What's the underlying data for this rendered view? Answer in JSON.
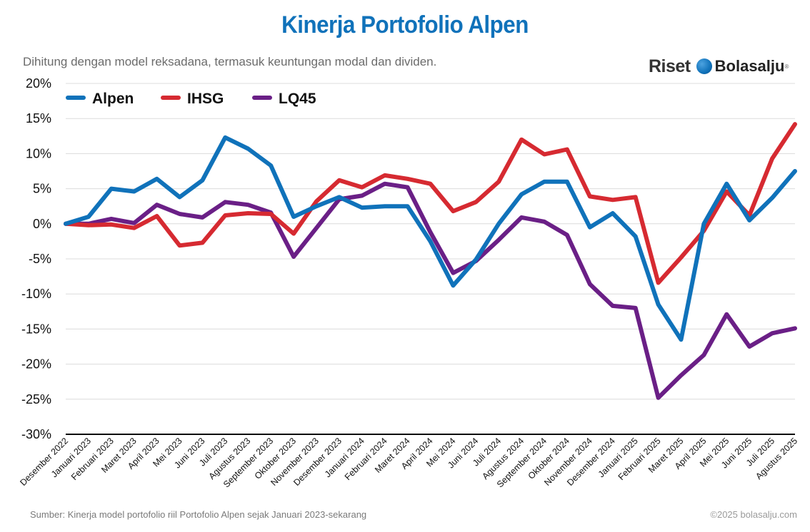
{
  "header": {
    "title": "Kinerja Portofolio Alpen",
    "subtitle": "Dihitung dengan model reksadana, termasuk keuntungan modal dan dividen."
  },
  "brand": {
    "riset": "Riset",
    "name": "Bolasalju",
    "reg": "®",
    "ball_icon": "snowball-icon"
  },
  "footer": {
    "source": "Sumber: Kinerja model portofolio riil Portofolio Alpen sejak Januari 2023-sekarang",
    "copyright": "©2025 bolasalju.com"
  },
  "colors": {
    "Alpen": "#1072ba",
    "IHSG": "#d62a31",
    "LQ45": "#6a1f86",
    "title": "#1072ba"
  },
  "chart_data": {
    "type": "line",
    "title": "Kinerja Portofolio Alpen",
    "xlabel": "",
    "ylabel": "",
    "ylim": [
      -30,
      20
    ],
    "yticks": [
      20,
      15,
      10,
      5,
      0,
      -5,
      -10,
      -15,
      -20,
      -25,
      -30
    ],
    "ytick_labels": [
      "20%",
      "15%",
      "10%",
      "5%",
      "0%",
      "-5%",
      "-10%",
      "-15%",
      "-20%",
      "-25%",
      "-30%"
    ],
    "grid": true,
    "legend_position": "top-left",
    "categories": [
      "Desember 2022",
      "Januari 2023",
      "Februari 2023",
      "Maret 2023",
      "April 2023",
      "Mei 2023",
      "Juni 2023",
      "Juli 2023",
      "Agustus 2023",
      "September 2023",
      "Oktober 2023",
      "November 2023",
      "Desember 2023",
      "Januari 2024",
      "Februari 2024",
      "Maret 2024",
      "April 2024",
      "Mei 2024",
      "Juni 2024",
      "Juli 2024",
      "Agustus 2024",
      "September 2024",
      "Oktober 2024",
      "November 2024",
      "Desember 2024",
      "Januari 2025",
      "Februari 2025",
      "Maret 2025",
      "April 2025",
      "Mei 2025",
      "Juni 2025",
      "Juli 2025",
      "Agustus 2025"
    ],
    "series": [
      {
        "name": "Alpen",
        "values": [
          0,
          1,
          5,
          4.6,
          6.4,
          3.8,
          6.2,
          12.3,
          10.7,
          8.3,
          1,
          2.5,
          3.8,
          2.3,
          2.5,
          2.5,
          -2.5,
          -8.8,
          -5.1,
          0,
          4.2,
          6,
          6,
          -0.5,
          1.5,
          -1.8,
          -11.5,
          -16.5,
          0,
          5.7,
          0.5,
          3.7,
          7.5
        ]
      },
      {
        "name": "IHSG",
        "values": [
          0,
          -0.2,
          -0.1,
          -0.6,
          1.1,
          -3.1,
          -2.7,
          1.2,
          1.5,
          1.4,
          -1.4,
          3.2,
          6.2,
          5.2,
          6.9,
          6.4,
          5.7,
          1.8,
          3.1,
          6,
          12,
          9.9,
          10.6,
          3.9,
          3.4,
          3.8,
          -8.4,
          -4.8,
          -1,
          4.6,
          1.2,
          9.3,
          14.2
        ]
      },
      {
        "name": "LQ45",
        "values": [
          0,
          0,
          0.7,
          0.1,
          2.7,
          1.4,
          0.9,
          3.1,
          2.7,
          1.6,
          -4.7,
          -0.6,
          3.5,
          4,
          5.7,
          5.2,
          -1.2,
          -7,
          -5.3,
          -2.3,
          0.9,
          0.3,
          -1.6,
          -8.6,
          -11.7,
          -12,
          -24.8,
          -21.6,
          -18.7,
          -12.9,
          -17.5,
          -15.6,
          -14.9
        ]
      }
    ]
  }
}
